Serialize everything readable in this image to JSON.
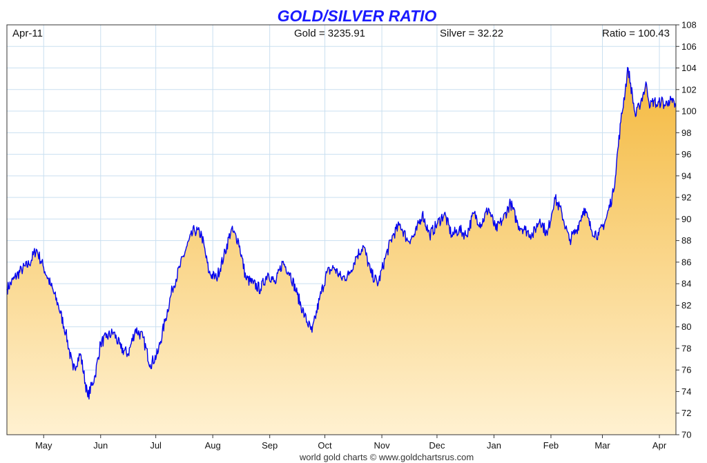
{
  "chart_data": {
    "type": "area",
    "title": "GOLD/SILVER RATIO",
    "header": {
      "date": "Apr-11",
      "gold": "Gold = 3235.91",
      "silver": "Silver = 32.22",
      "ratio": "Ratio = 100.43"
    },
    "credit": "world gold charts © www.goldchartsrus.com",
    "xlabel": "",
    "ylabel": "",
    "ylim": [
      70,
      108
    ],
    "y_ticks": [
      "70",
      "72",
      "74",
      "76",
      "78",
      "80",
      "82",
      "84",
      "86",
      "88",
      "90",
      "92",
      "94",
      "96",
      "98",
      "100",
      "102",
      "104",
      "106",
      "108"
    ],
    "x_ticks": [
      "May",
      "Jun",
      "Jul",
      "Aug",
      "Sep",
      "Oct",
      "Nov",
      "Dec",
      "Jan",
      "Feb",
      "Mar",
      "Apr"
    ],
    "x_tick_days": [
      20,
      51,
      81,
      112,
      143,
      173,
      204,
      234,
      265,
      296,
      324,
      355
    ],
    "grid": true,
    "series": [
      {
        "x": [
          0,
          4,
          8,
          12,
          16,
          20,
          24,
          28,
          32,
          36,
          40,
          44,
          48,
          51,
          54,
          58,
          62,
          66,
          70,
          74,
          78,
          82,
          86,
          90,
          94,
          98,
          102,
          106,
          110,
          114,
          118,
          122,
          126,
          130,
          134,
          138,
          142,
          146,
          150,
          154,
          158,
          162,
          166,
          170,
          174,
          178,
          182,
          186,
          190,
          194,
          198,
          202,
          206,
          210,
          214,
          218,
          222,
          226,
          230,
          234,
          238,
          242,
          246,
          250,
          254,
          258,
          262,
          266,
          270,
          274,
          278,
          282,
          286,
          290,
          294,
          298,
          302,
          306,
          310,
          314,
          318,
          322,
          326,
          330,
          334,
          338,
          342,
          344,
          346,
          348,
          350,
          352,
          354,
          356,
          358,
          360,
          362,
          364
        ],
        "values": [
          83.5,
          84.5,
          85.3,
          85.8,
          87.2,
          85.5,
          83.8,
          82.0,
          79.5,
          76.0,
          77.5,
          73.5,
          75.5,
          78.5,
          79.0,
          79.5,
          78.0,
          77.5,
          79.8,
          79.0,
          76.5,
          77.5,
          80.5,
          83.5,
          85.5,
          87.5,
          89.0,
          88.5,
          85.0,
          84.5,
          86.5,
          89.0,
          88.0,
          84.5,
          84.0,
          83.5,
          85.0,
          84.0,
          86.0,
          85.0,
          83.0,
          81.0,
          79.5,
          82.5,
          85.0,
          85.5,
          84.5,
          84.8,
          86.5,
          87.5,
          85.0,
          84.0,
          86.5,
          88.5,
          89.5,
          88.0,
          88.5,
          90.5,
          88.5,
          89.5,
          90.5,
          88.5,
          89.0,
          88.5,
          90.5,
          89.5,
          91.0,
          89.0,
          90.0,
          91.5,
          89.5,
          89.0,
          88.5,
          90.0,
          88.5,
          92.0,
          90.5,
          88.0,
          89.0,
          91.0,
          89.0,
          88.5,
          90.0,
          92.5,
          99.0,
          104.0,
          99.5,
          100.5,
          101.5,
          102.5,
          100.43,
          101.0,
          100.5,
          101.0,
          100.5,
          101.0,
          100.8,
          100.43
        ]
      }
    ]
  }
}
